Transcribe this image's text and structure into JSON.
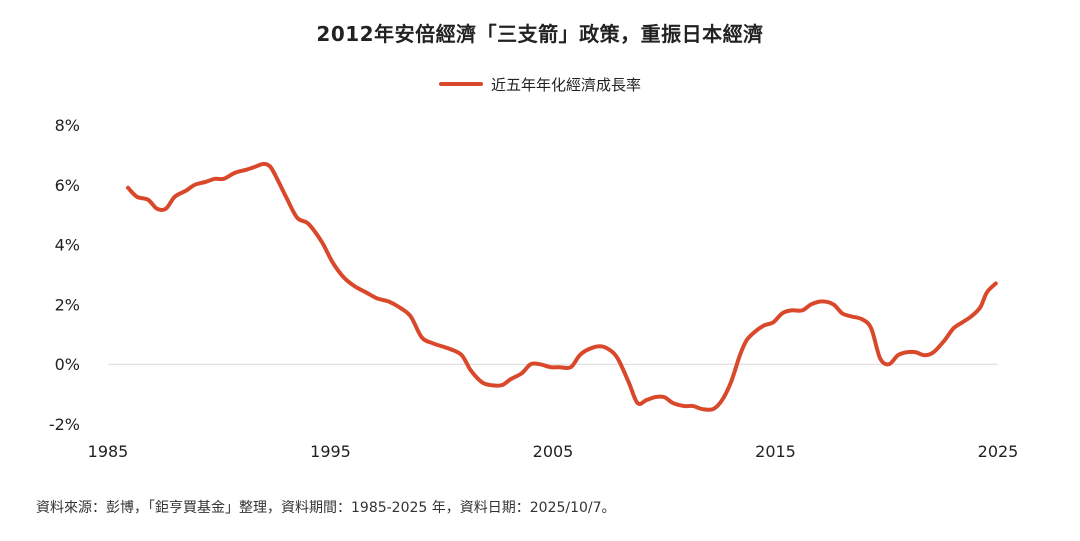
{
  "chart_data": {
    "type": "line",
    "title": "2012年安倍經濟「三支箭」政策，重振日本經濟",
    "xlabel": "",
    "ylabel": "",
    "xlim": [
      1985,
      2025
    ],
    "ylim": [
      -2,
      8
    ],
    "x_ticks": [
      1985,
      1995,
      2005,
      2015,
      2025
    ],
    "y_ticks": [
      -2,
      0,
      2,
      4,
      6,
      8
    ],
    "y_tick_labels": [
      "-2%",
      "0%",
      "2%",
      "4%",
      "6%",
      "8%"
    ],
    "x_tick_labels": [
      "1985",
      "1995",
      "2005",
      "2015",
      "2025"
    ],
    "grid": "zero-line only",
    "legend_position": "top-center",
    "series": [
      {
        "name": "近五年年化經濟成長率",
        "color": "#D9482B",
        "x": [
          1985.9,
          1986.3,
          1986.8,
          1987.2,
          1987.6,
          1988.0,
          1988.5,
          1988.9,
          1989.4,
          1989.8,
          1990.2,
          1990.7,
          1991.2,
          1991.6,
          1992.0,
          1992.3,
          1992.6,
          1993.0,
          1993.5,
          1994.0,
          1994.6,
          1995.1,
          1995.6,
          1996.1,
          1996.6,
          1997.1,
          1997.6,
          1998.1,
          1998.6,
          1999.1,
          1999.6,
          2000.0,
          2000.4,
          2000.9,
          2001.3,
          2001.8,
          2002.2,
          2002.7,
          2003.1,
          2003.6,
          2004.0,
          2004.4,
          2004.9,
          2005.3,
          2005.8,
          2006.2,
          2006.6,
          2007.1,
          2007.5,
          2007.9,
          2008.4,
          2008.8,
          2009.2,
          2009.6,
          2010.0,
          2010.4,
          2010.9,
          2011.3,
          2011.7,
          2012.2,
          2012.6,
          2013.0,
          2013.4,
          2013.7,
          2014.1,
          2014.5,
          2014.9,
          2015.3,
          2015.7,
          2016.2,
          2016.6,
          2017.1,
          2017.6,
          2018.0,
          2018.4,
          2018.9,
          2019.3,
          2019.7,
          2020.1,
          2020.5,
          2020.9,
          2021.3,
          2021.7,
          2022.1,
          2022.6,
          2023.0,
          2023.4,
          2023.8,
          2024.2,
          2024.5,
          2024.9
        ],
        "values": [
          5.9,
          5.6,
          5.5,
          5.2,
          5.2,
          5.6,
          5.8,
          6.0,
          6.1,
          6.2,
          6.2,
          6.4,
          6.5,
          6.6,
          6.7,
          6.6,
          6.2,
          5.6,
          4.9,
          4.7,
          4.1,
          3.4,
          2.9,
          2.6,
          2.4,
          2.2,
          2.1,
          1.9,
          1.6,
          0.9,
          0.7,
          0.6,
          0.5,
          0.3,
          -0.2,
          -0.6,
          -0.7,
          -0.7,
          -0.5,
          -0.3,
          0.0,
          0.0,
          -0.1,
          -0.1,
          -0.1,
          0.3,
          0.5,
          0.6,
          0.5,
          0.2,
          -0.6,
          -1.3,
          -1.2,
          -1.1,
          -1.1,
          -1.3,
          -1.4,
          -1.4,
          -1.5,
          -1.5,
          -1.2,
          -0.6,
          0.3,
          0.8,
          1.1,
          1.3,
          1.4,
          1.7,
          1.8,
          1.8,
          2.0,
          2.1,
          2.0,
          1.7,
          1.6,
          1.5,
          1.2,
          0.2,
          0.0,
          0.3,
          0.4,
          0.4,
          0.3,
          0.4,
          0.8,
          1.2,
          1.4,
          1.6,
          1.9,
          2.4,
          2.7
        ]
      }
    ]
  },
  "source_note": "資料來源：彭博，「鉅亨買基金」整理，資料期間：1985-2025 年，資料日期：2025/10/7。"
}
